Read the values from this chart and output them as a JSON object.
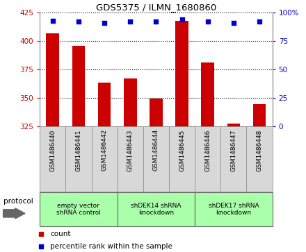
{
  "title": "GDS5375 / ILMN_1680860",
  "samples": [
    "GSM1486440",
    "GSM1486441",
    "GSM1486442",
    "GSM1486443",
    "GSM1486444",
    "GSM1486445",
    "GSM1486446",
    "GSM1486447",
    "GSM1486448"
  ],
  "counts": [
    407,
    396,
    363,
    367,
    349,
    418,
    381,
    327,
    344
  ],
  "percentiles": [
    93,
    92,
    91,
    92,
    92,
    94,
    92,
    91,
    92
  ],
  "ylim_left": [
    325,
    425
  ],
  "ylim_right": [
    0,
    100
  ],
  "yticks_left": [
    325,
    350,
    375,
    400,
    425
  ],
  "yticks_right": [
    0,
    25,
    50,
    75,
    100
  ],
  "bar_color": "#cc0000",
  "dot_color": "#0000cc",
  "bar_width": 0.5,
  "groups": [
    {
      "label": "empty vector\nshRNA control",
      "start": 0,
      "end": 3,
      "color": "#aaffaa"
    },
    {
      "label": "shDEK14 shRNA\nknockdown",
      "start": 3,
      "end": 6,
      "color": "#aaffaa"
    },
    {
      "label": "shDEK17 shRNA\nknockdown",
      "start": 6,
      "end": 9,
      "color": "#aaffaa"
    }
  ],
  "legend_count_label": "count",
  "legend_percentile_label": "percentile rank within the sample",
  "protocol_label": "protocol",
  "sample_bg_color": "#d8d8d8",
  "plot_bg_color": "#ffffff",
  "grid_color": "#000000",
  "left_label_color": "#cc0000",
  "right_label_color": "#0000cc",
  "spine_color": "#888888"
}
